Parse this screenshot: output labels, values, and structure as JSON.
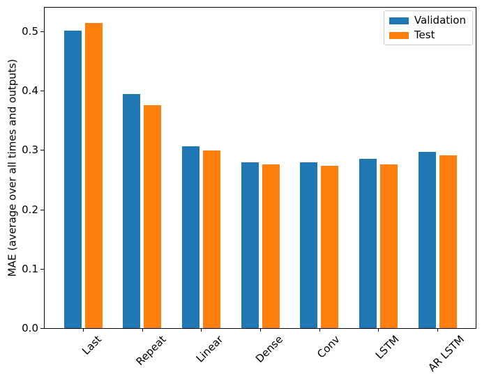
{
  "chart_data": {
    "type": "bar",
    "title": "",
    "categories": [
      "Last",
      "Repeat",
      "Linear",
      "Dense",
      "Conv",
      "LSTM",
      "AR LSTM"
    ],
    "series": [
      {
        "name": "Validation",
        "color": "#1f77b4",
        "values": [
          0.501,
          0.395,
          0.306,
          0.28,
          0.28,
          0.285,
          0.297
        ]
      },
      {
        "name": "Test",
        "color": "#ff7f0e",
        "values": [
          0.514,
          0.376,
          0.299,
          0.276,
          0.273,
          0.276,
          0.291
        ]
      }
    ],
    "xlabel": "",
    "ylabel": "MAE (average over all times and outputs)",
    "yticks": [
      0.0,
      0.1,
      0.2,
      0.3,
      0.4,
      0.5
    ],
    "ytick_labels": [
      "0.0",
      "0.1",
      "0.2",
      "0.3",
      "0.4",
      "0.5"
    ],
    "ylim": [
      0,
      0.54
    ],
    "grid": false,
    "legend_position": "upper right",
    "xtick_rotation_deg": 45,
    "axis_color": "#000000",
    "background_color": "#ffffff"
  }
}
